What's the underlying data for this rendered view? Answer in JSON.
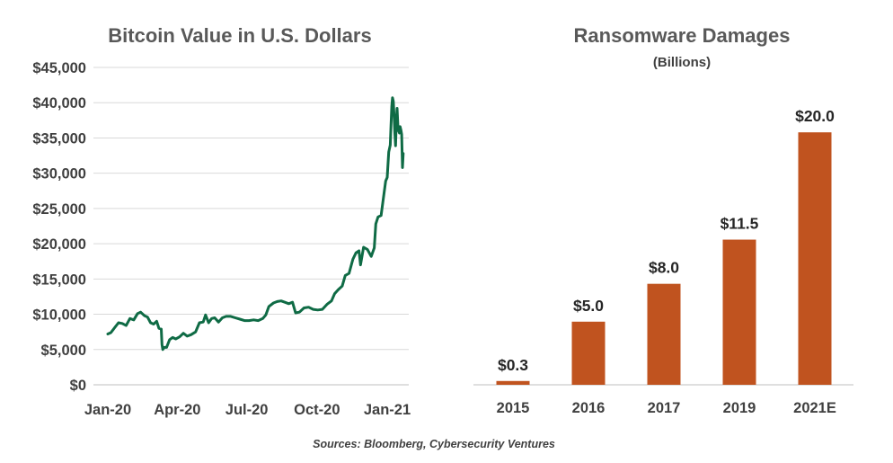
{
  "chart_data": [
    {
      "type": "line",
      "title": "Bitcoin Value in U.S. Dollars",
      "xlabel": "",
      "ylabel": "",
      "ylim": [
        0,
        45000
      ],
      "y_ticks": [
        "$0",
        "$5,000",
        "$10,000",
        "$15,000",
        "$20,000",
        "$25,000",
        "$30,000",
        "$35,000",
        "$40,000",
        "$45,000"
      ],
      "x_ticks": [
        "Jan-20",
        "Apr-20",
        "Jul-20",
        "Oct-20",
        "Jan-21"
      ],
      "x_tick_dates": [
        "2020-01-01",
        "2020-04-01",
        "2020-07-01",
        "2020-10-01",
        "2021-01-01"
      ],
      "grid": true,
      "line_color": "#0f6b45",
      "series": [
        {
          "x": [
            "2020-01-01",
            "2020-01-05",
            "2020-01-10",
            "2020-01-15",
            "2020-01-20",
            "2020-01-25",
            "2020-01-30",
            "2020-02-04",
            "2020-02-09",
            "2020-02-13",
            "2020-02-18",
            "2020-02-22",
            "2020-02-26",
            "2020-03-01",
            "2020-03-05",
            "2020-03-08",
            "2020-03-11",
            "2020-03-12",
            "2020-03-13",
            "2020-03-15",
            "2020-03-18",
            "2020-03-22",
            "2020-03-26",
            "2020-03-30",
            "2020-04-04",
            "2020-04-09",
            "2020-04-14",
            "2020-04-19",
            "2020-04-25",
            "2020-04-30",
            "2020-05-05",
            "2020-05-08",
            "2020-05-12",
            "2020-05-16",
            "2020-05-20",
            "2020-05-25",
            "2020-05-30",
            "2020-06-04",
            "2020-06-10",
            "2020-06-16",
            "2020-06-22",
            "2020-06-28",
            "2020-07-04",
            "2020-07-10",
            "2020-07-16",
            "2020-07-22",
            "2020-07-26",
            "2020-07-30",
            "2020-08-05",
            "2020-08-10",
            "2020-08-15",
            "2020-08-20",
            "2020-08-25",
            "2020-08-30",
            "2020-09-03",
            "2020-09-08",
            "2020-09-14",
            "2020-09-20",
            "2020-09-26",
            "2020-10-02",
            "2020-10-08",
            "2020-10-14",
            "2020-10-20",
            "2020-10-24",
            "2020-10-29",
            "2020-11-03",
            "2020-11-07",
            "2020-11-12",
            "2020-11-17",
            "2020-11-21",
            "2020-11-25",
            "2020-11-27",
            "2020-12-01",
            "2020-12-06",
            "2020-12-11",
            "2020-12-15",
            "2020-12-17",
            "2020-12-20",
            "2020-12-24",
            "2020-12-27",
            "2020-12-30",
            "2021-01-01",
            "2021-01-03",
            "2021-01-05",
            "2021-01-06",
            "2021-01-07",
            "2021-01-08",
            "2021-01-09",
            "2021-01-10",
            "2021-01-11",
            "2021-01-12",
            "2021-01-13",
            "2021-01-14",
            "2021-01-15",
            "2021-01-16",
            "2021-01-17",
            "2021-01-18",
            "2021-01-19",
            "2021-01-20",
            "2021-01-21",
            "2021-01-22"
          ],
          "values": [
            7200,
            7400,
            8100,
            8800,
            8700,
            8400,
            9400,
            9200,
            10100,
            10300,
            9800,
            9600,
            8800,
            8600,
            9000,
            8000,
            7900,
            5700,
            5000,
            5300,
            5300,
            6400,
            6700,
            6500,
            6800,
            7300,
            6900,
            7100,
            7500,
            8800,
            8900,
            9900,
            8800,
            9400,
            9500,
            8900,
            9500,
            9700,
            9700,
            9500,
            9300,
            9100,
            9100,
            9200,
            9100,
            9400,
            9900,
            11100,
            11600,
            11800,
            11900,
            11700,
            11500,
            11700,
            10200,
            10300,
            10900,
            11000,
            10700,
            10600,
            10700,
            11400,
            11900,
            12900,
            13500,
            14000,
            15500,
            15800,
            17800,
            18700,
            19000,
            17000,
            19500,
            19200,
            18200,
            19400,
            22800,
            23800,
            24000,
            26500,
            28900,
            29400,
            33000,
            34000,
            36700,
            39500,
            40700,
            40200,
            38300,
            35700,
            33900,
            37500,
            39200,
            36800,
            36000,
            35700,
            36600,
            36100,
            35500,
            30800,
            32800
          ]
        }
      ]
    },
    {
      "type": "bar",
      "title": "Ransomware Damages",
      "subtitle": "(Billions)",
      "xlabel": "",
      "ylabel": "",
      "ylim": [
        0,
        25
      ],
      "grid": false,
      "bar_color": "#c0531f",
      "categories": [
        "2015",
        "2016",
        "2017",
        "2019",
        "2021E"
      ],
      "values": [
        0.3,
        5.0,
        8.0,
        11.5,
        20.0
      ],
      "data_labels": [
        "$0.3",
        "$5.0",
        "$8.0",
        "$11.5",
        "$20.0"
      ]
    }
  ],
  "footer": {
    "source": "Sources: Bloomberg, Cybersecurity Ventures"
  }
}
